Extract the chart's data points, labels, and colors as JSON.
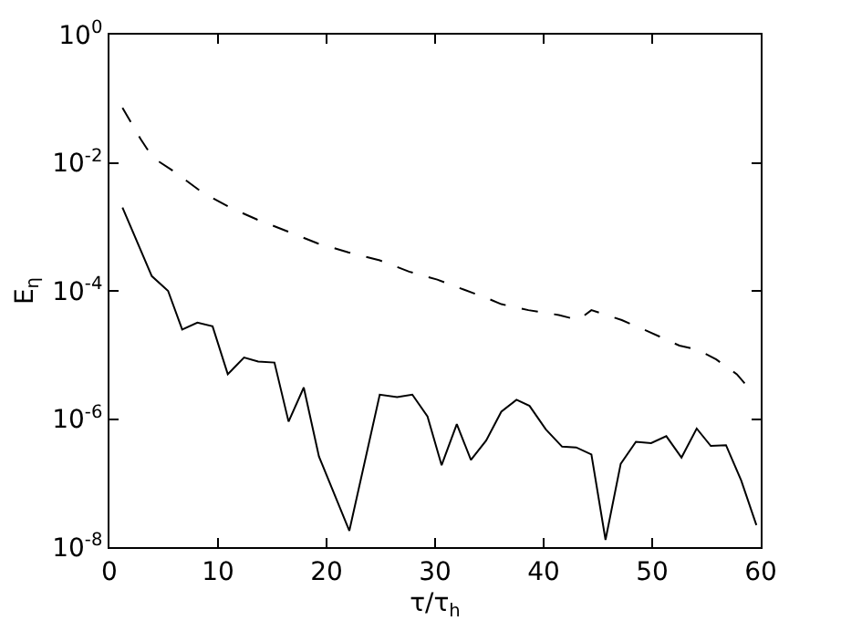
{
  "chart_data": {
    "type": "line",
    "xlabel": "τ/τ$_{h}$",
    "ylabel": "E$_{η}$",
    "log": "y",
    "marker": "none",
    "xlim": [
      0,
      60
    ],
    "xticks": [
      0,
      10,
      20,
      30,
      40,
      50,
      60
    ],
    "ylim": [
      1e-08,
      1
    ],
    "yticks": [
      {
        "value": 1e-08,
        "label": "10$^{-8}$"
      },
      {
        "value": 1e-06,
        "label": "10$^{-6}$"
      },
      {
        "value": 0.0001,
        "label": "10$^{-4}$"
      },
      {
        "value": 0.01,
        "label": "10$^{-2}$"
      },
      {
        "value": 1,
        "label": "10$^{0}$"
      }
    ],
    "series": [
      {
        "color": "#000000",
        "line_style": "dashed",
        "x": [
          1.2,
          2.9,
          4.0,
          5.7,
          8.5,
          11.1,
          13.6,
          16.4,
          19.2,
          22.0,
          24.9,
          27.6,
          30.2,
          32.0,
          34.7,
          36.1,
          38.6,
          41.4,
          43.2,
          44.4,
          45.8,
          47.2,
          49.7,
          52.5,
          54.2,
          55.9,
          57.8,
          59.5
        ],
        "values": [
          0.072,
          0.023,
          0.012,
          0.0078,
          0.0035,
          0.002,
          0.0013,
          0.00085,
          0.00055,
          0.0004,
          0.0003,
          0.0002,
          0.00015,
          0.000115,
          7.8e-05,
          6.2e-05,
          5e-05,
          4.2e-05,
          3.5e-05,
          5e-05,
          4.2e-05,
          3.5e-05,
          2.3e-05,
          1.4e-05,
          1.2e-05,
          8.5e-06,
          5e-06,
          2.3e-06
        ]
      },
      {
        "color": "#000000",
        "line_style": "solid",
        "x": [
          1.2,
          3.9,
          5.4,
          6.7,
          8.1,
          9.5,
          10.9,
          12.4,
          13.7,
          15.2,
          16.5,
          17.9,
          19.3,
          22.1,
          24.9,
          26.5,
          27.9,
          29.3,
          30.6,
          32.0,
          33.3,
          34.7,
          36.1,
          37.5,
          38.7,
          40.2,
          41.7,
          43.0,
          44.4,
          45.7,
          47.1,
          48.5,
          49.9,
          51.3,
          52.7,
          54.1,
          55.4,
          56.8,
          58.2,
          59.6
        ],
        "values": [
          0.002,
          0.00017,
          0.0001,
          2.5e-05,
          3.2e-05,
          2.8e-05,
          5e-06,
          9.1e-06,
          7.9e-06,
          7.6e-06,
          9.1e-07,
          3.1e-06,
          2.6e-07,
          1.8e-08,
          2.4e-06,
          2.2e-06,
          2.4e-06,
          1.1e-06,
          1.9e-07,
          8.3e-07,
          2.3e-07,
          4.6e-07,
          1.3e-06,
          2e-06,
          1.6e-06,
          6.9e-07,
          3.7e-07,
          3.6e-07,
          2.8e-07,
          1.3e-08,
          2e-07,
          4.4e-07,
          4.2e-07,
          5.4e-07,
          2.5e-07,
          7.1e-07,
          3.8e-07,
          3.9e-07,
          1.1e-07,
          2.2e-08
        ]
      }
    ]
  }
}
